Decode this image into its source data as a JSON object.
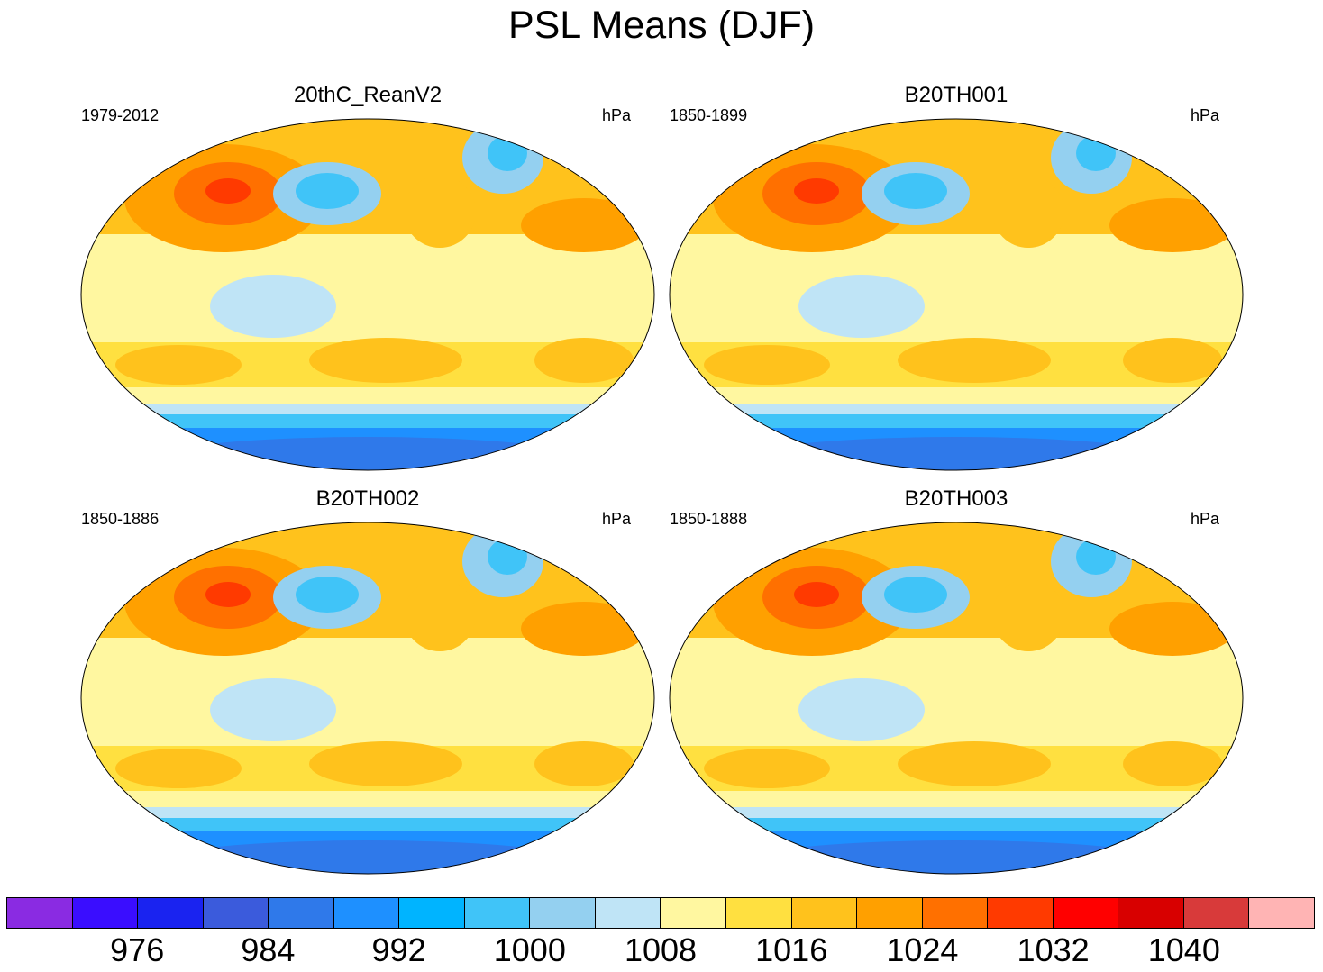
{
  "title": "PSL Means (DJF)",
  "panels": [
    {
      "name": "20thC_ReanV2",
      "years": "1979-2012",
      "units": "hPa"
    },
    {
      "name": "B20TH001",
      "years": "1850-1899",
      "units": "hPa"
    },
    {
      "name": "B20TH002",
      "years": "1850-1886",
      "units": "hPa"
    },
    {
      "name": "B20TH003",
      "years": "1850-1888",
      "units": "hPa"
    }
  ],
  "colorbar": {
    "labels": [
      "976",
      "984",
      "992",
      "1000",
      "1008",
      "1016",
      "1024",
      "1032",
      "1040"
    ],
    "colors": [
      "#8a2be2",
      "#3a0dff",
      "#1a23f0",
      "#3b5bdc",
      "#2f79ea",
      "#1e90ff",
      "#00b4ff",
      "#40c4f8",
      "#94d0f0",
      "#bfe4f6",
      "#fff7a0",
      "#ffe040",
      "#ffc21c",
      "#ffa000",
      "#ff7000",
      "#ff3a00",
      "#ff0000",
      "#d80000",
      "#d83a3a",
      "#ffb4b4"
    ]
  }
}
